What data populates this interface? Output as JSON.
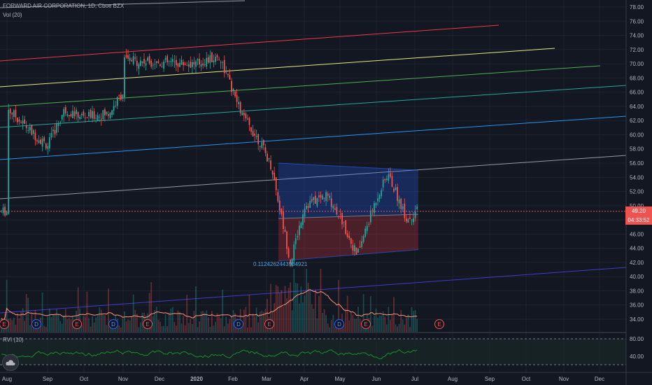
{
  "header": {
    "symbol_line": "FORWARD AIR CORPORATION, 1D, Cboe BZX",
    "vol_label": "Vol (20)"
  },
  "rvi_pane": {
    "label": "RVI (10)",
    "levels": [
      {
        "label": "80.00"
      },
      {
        "label": "40.00"
      }
    ]
  },
  "price_axis": {
    "labels": [
      "78.00",
      "76.00",
      "74.00",
      "72.00",
      "70.00",
      "68.00",
      "66.00",
      "64.00",
      "62.00",
      "60.00",
      "58.00",
      "56.00",
      "54.00",
      "52.00",
      "50.00",
      "48.00",
      "46.00",
      "44.00",
      "42.00",
      "40.00",
      "38.00",
      "36.00",
      "34.00"
    ]
  },
  "time_axis": {
    "labels": [
      "Aug",
      "Sep",
      "Oct",
      "Nov",
      "Dec",
      "2020",
      "Feb",
      "Mar",
      "Apr",
      "May",
      "Jun",
      "Jul",
      "Aug",
      "Sep",
      "Oct",
      "Nov",
      "Dec"
    ]
  },
  "last_price": {
    "value": "49.20",
    "countdown": "04:33:52",
    "color": "#ef5350"
  },
  "ratio_label": "0.1124262443934921",
  "event_markers": [
    "E",
    "D",
    "E",
    "D",
    "E",
    "D",
    "E",
    "D",
    "E"
  ],
  "colors": {
    "bg": "#131722",
    "up": "#26a69a",
    "down": "#ef5350",
    "vol_ma": "#ff9478",
    "rvi": "#1b8d2b",
    "long_position_profit": "#2962ff",
    "long_position_loss": "#f23645"
  },
  "chart_data": {
    "type": "candlestick",
    "symbol": "FORWARD AIR CORPORATION",
    "interval": "1D",
    "exchange": "Cboe BZX",
    "y_range": [
      33,
      79
    ],
    "x_range": [
      "2019-08",
      "2020-12"
    ],
    "last": 49.2,
    "approx_close_path": [
      {
        "x": "2019-08-01",
        "y": 63.8
      },
      {
        "x": "2019-08-20",
        "y": 60.2
      },
      {
        "x": "2019-09-01",
        "y": 58.5
      },
      {
        "x": "2019-09-15",
        "y": 63.5
      },
      {
        "x": "2019-10-01",
        "y": 62.5
      },
      {
        "x": "2019-10-20",
        "y": 63.0
      },
      {
        "x": "2019-10-31",
        "y": 66.0
      },
      {
        "x": "2019-11-01",
        "y": 70.5
      },
      {
        "x": "2019-12-01",
        "y": 70.2
      },
      {
        "x": "2020-01-01",
        "y": 70.0
      },
      {
        "x": "2020-01-20",
        "y": 71.0
      },
      {
        "x": "2020-02-01",
        "y": 66.0
      },
      {
        "x": "2020-02-10",
        "y": 62.5
      },
      {
        "x": "2020-02-25",
        "y": 59.0
      },
      {
        "x": "2020-03-05",
        "y": 55.5
      },
      {
        "x": "2020-03-10",
        "y": 51.0
      },
      {
        "x": "2020-03-20",
        "y": 42.0
      },
      {
        "x": "2020-04-01",
        "y": 50.0
      },
      {
        "x": "2020-04-20",
        "y": 51.5
      },
      {
        "x": "2020-05-01",
        "y": 48.5
      },
      {
        "x": "2020-05-15",
        "y": 43.0
      },
      {
        "x": "2020-06-01",
        "y": 51.0
      },
      {
        "x": "2020-06-10",
        "y": 54.5
      },
      {
        "x": "2020-06-25",
        "y": 48.0
      },
      {
        "x": "2020-07-02",
        "y": 49.2
      }
    ],
    "drawings": {
      "parallel_channel_levels": [
        "red",
        "yellow",
        "green",
        "teal",
        "blue",
        "gray",
        "indigo"
      ],
      "long_position": {
        "entry": 48.2,
        "target": 55.0,
        "stop": 43.2
      }
    },
    "rvi": {
      "levels": [
        80,
        40
      ]
    }
  }
}
